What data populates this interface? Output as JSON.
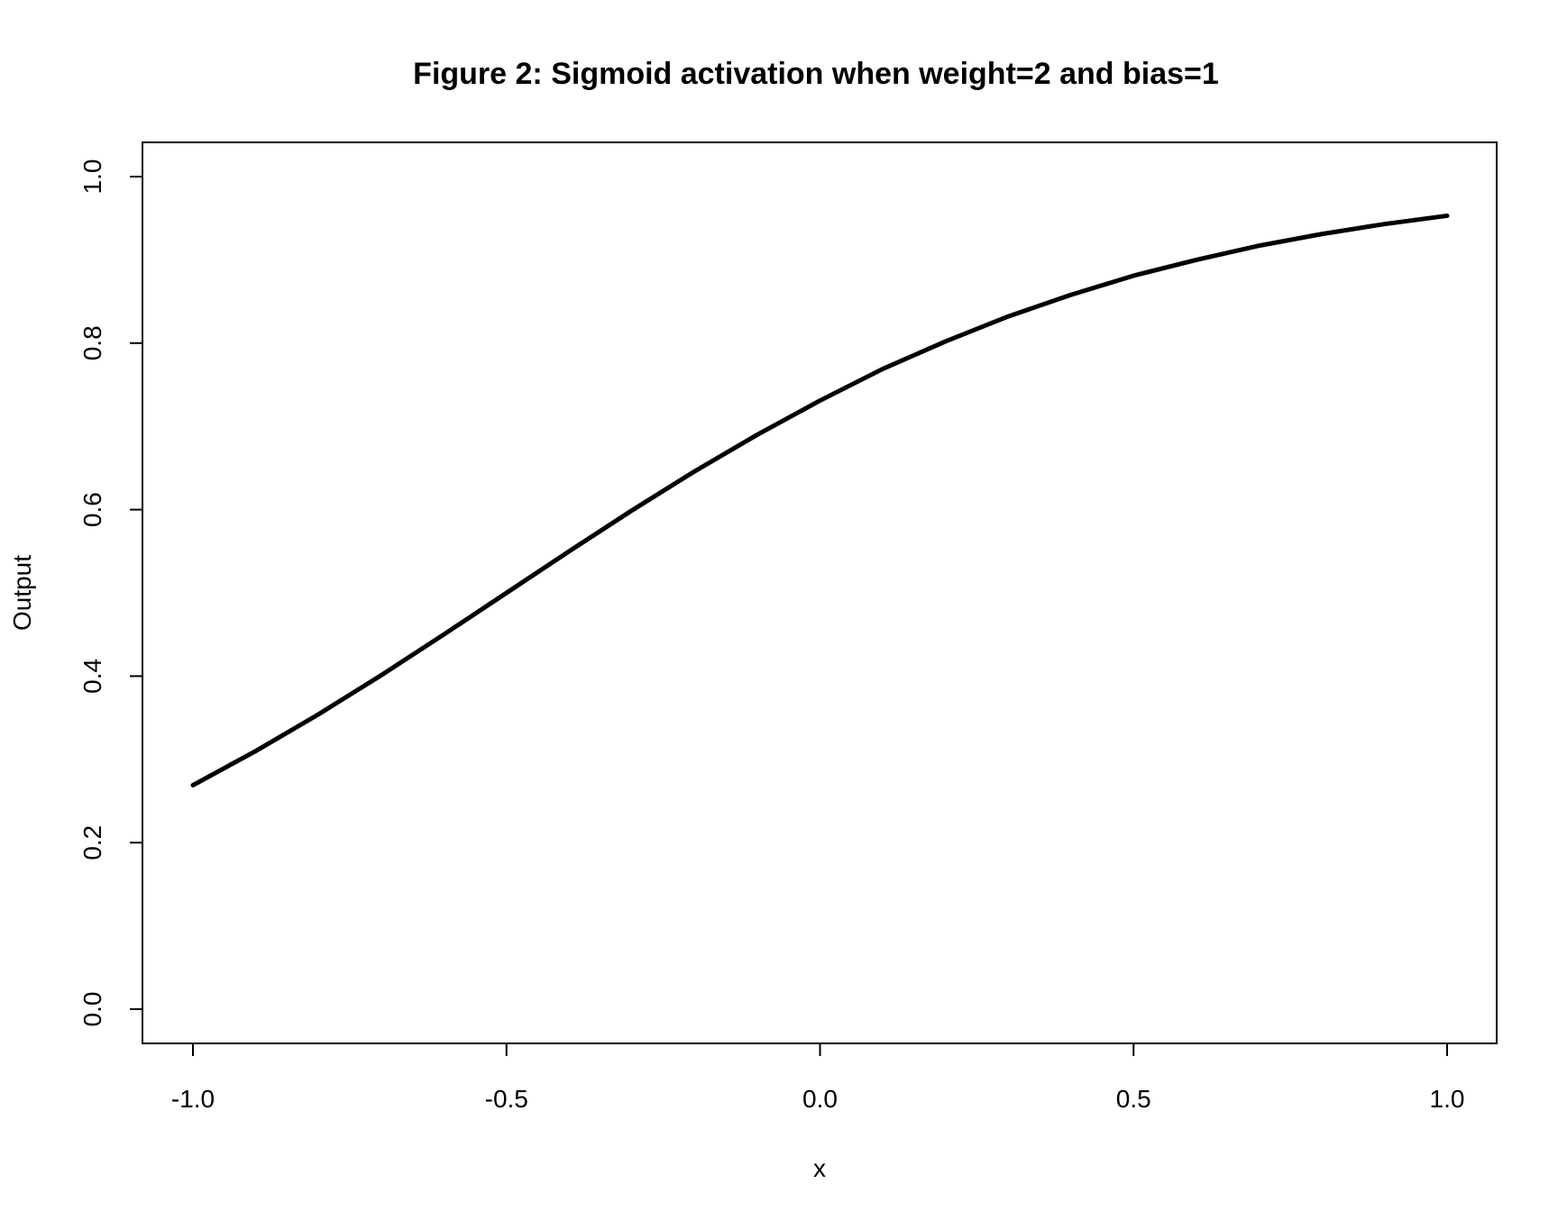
{
  "chart_data": {
    "type": "line",
    "title": "Figure 2: Sigmoid activation when weight=2 and bias=1",
    "xlabel": "x",
    "ylabel": "Output",
    "xlim": [
      -1.0,
      1.0
    ],
    "ylim": [
      0.0,
      1.0
    ],
    "x_ticks": [
      "-1.0",
      "-0.5",
      "0.0",
      "0.5",
      "1.0"
    ],
    "y_ticks": [
      "0.0",
      "0.2",
      "0.4",
      "0.6",
      "0.8",
      "1.0"
    ],
    "grid": false,
    "legend": "none",
    "line_color": "#000000",
    "series": [
      {
        "x": [
          -1.0,
          -0.9,
          -0.8,
          -0.7,
          -0.6,
          -0.5,
          -0.4,
          -0.3,
          -0.2,
          -0.1,
          0.0,
          0.1,
          0.2,
          0.3,
          0.4,
          0.5,
          0.6,
          0.7,
          0.8,
          0.9,
          1.0
        ],
        "values": [
          0.269,
          0.31,
          0.354,
          0.401,
          0.45,
          0.5,
          0.55,
          0.599,
          0.646,
          0.69,
          0.731,
          0.769,
          0.802,
          0.832,
          0.858,
          0.881,
          0.9,
          0.917,
          0.931,
          0.943,
          0.953
        ]
      }
    ]
  }
}
